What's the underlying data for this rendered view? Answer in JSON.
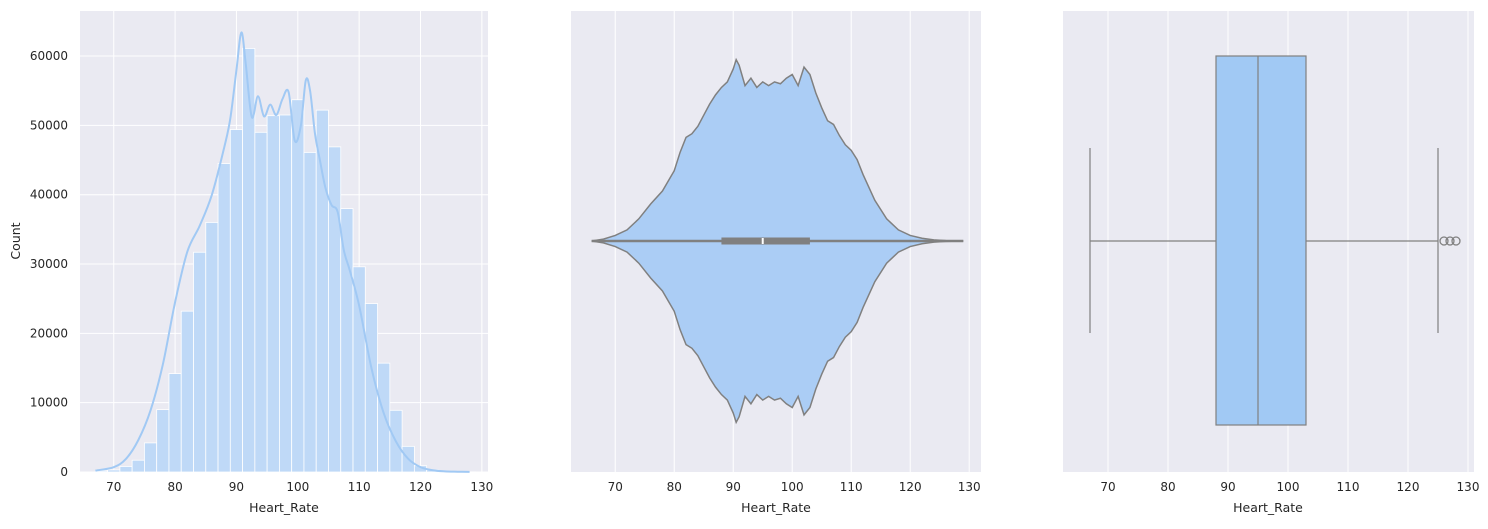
{
  "chart_data": [
    {
      "type": "bar",
      "subtype": "histogram-with-kde",
      "xlabel": "Heart_Rate",
      "ylabel": "Count",
      "xlim": [
        64.5,
        131
      ],
      "ylim": [
        0,
        66500
      ],
      "xticks": [
        70,
        80,
        90,
        100,
        110,
        120,
        130
      ],
      "yticks": [
        0,
        10000,
        20000,
        30000,
        40000,
        50000,
        60000
      ],
      "bin_edges": [
        67,
        69,
        71,
        73,
        75,
        77,
        79,
        81,
        83,
        85,
        87,
        89,
        91,
        93,
        95,
        97,
        99,
        101,
        103,
        105,
        107,
        109,
        111,
        113,
        115,
        117,
        119,
        121,
        123,
        125,
        127,
        129
      ],
      "values": [
        150,
        300,
        800,
        1700,
        4200,
        9000,
        14200,
        23200,
        31700,
        36000,
        44500,
        49400,
        61100,
        49000,
        51400,
        51500,
        53700,
        46100,
        52200,
        46900,
        38000,
        29600,
        24300,
        15700,
        8900,
        3700,
        900,
        300,
        100,
        50,
        20
      ],
      "kde": {
        "x": [
          67,
          70,
          72,
          74,
          76,
          78,
          80,
          82,
          84,
          86,
          88,
          89,
          90,
          90.8,
          91.5,
          92.5,
          93.5,
          94.5,
          95.5,
          96.5,
          97.5,
          98.5,
          99.5,
          100.5,
          101.3,
          102,
          102.8,
          103.6,
          104.5,
          105.5,
          106.5,
          107.5,
          108.5,
          110,
          112,
          114,
          116,
          118,
          120,
          122,
          124,
          126,
          128
        ],
        "y": [
          200,
          700,
          1900,
          4600,
          8900,
          15500,
          24500,
          31800,
          35500,
          40000,
          46800,
          51000,
          58000,
          63400,
          59000,
          51200,
          54200,
          51300,
          53000,
          51500,
          53800,
          54800,
          47800,
          50000,
          56500,
          55000,
          48800,
          45000,
          41000,
          38500,
          37500,
          32000,
          29000,
          24000,
          15000,
          8500,
          4400,
          1900,
          700,
          250,
          90,
          40,
          15
        ]
      },
      "color": "#a1c9f4",
      "grid": true
    },
    {
      "type": "violin",
      "xlabel": "Heart_Rate",
      "xlim": [
        62.5,
        132
      ],
      "xticks": [
        70,
        80,
        90,
        100,
        110,
        120,
        130
      ],
      "range": [
        66,
        129
      ],
      "median": 95,
      "q1": 88,
      "q3": 103,
      "whisker_low": 67,
      "whisker_high": 125,
      "density_profile": {
        "x": [
          66,
          68,
          70,
          72,
          74,
          76,
          78,
          80,
          81,
          82,
          83,
          84,
          85,
          86,
          87,
          88,
          89,
          90,
          90.5,
          91,
          92,
          93,
          94,
          95,
          96,
          97,
          98,
          99,
          100,
          101,
          102,
          103,
          104,
          105,
          106,
          107,
          108,
          109,
          110,
          111,
          112,
          114,
          116,
          118,
          120,
          122,
          124,
          126,
          129
        ],
        "width": [
          0.0,
          0.01,
          0.03,
          0.06,
          0.12,
          0.2,
          0.27,
          0.38,
          0.48,
          0.56,
          0.58,
          0.62,
          0.68,
          0.74,
          0.79,
          0.83,
          0.86,
          0.93,
          0.98,
          0.95,
          0.84,
          0.88,
          0.83,
          0.86,
          0.84,
          0.86,
          0.85,
          0.88,
          0.9,
          0.84,
          0.94,
          0.9,
          0.8,
          0.72,
          0.65,
          0.63,
          0.57,
          0.52,
          0.49,
          0.44,
          0.36,
          0.22,
          0.12,
          0.06,
          0.03,
          0.015,
          0.006,
          0.002,
          0.0
        ]
      },
      "color": "#abcdf5",
      "grid": true
    },
    {
      "type": "box",
      "xlabel": "Heart_Rate",
      "xlim": [
        62.5,
        131
      ],
      "xticks": [
        70,
        80,
        90,
        100,
        110,
        120,
        130
      ],
      "whisker_low": 67,
      "q1": 88,
      "median": 95,
      "q3": 103,
      "whisker_high": 125,
      "outliers": [
        126,
        127,
        128
      ],
      "color": "#a1c9f4",
      "grid": true
    }
  ]
}
